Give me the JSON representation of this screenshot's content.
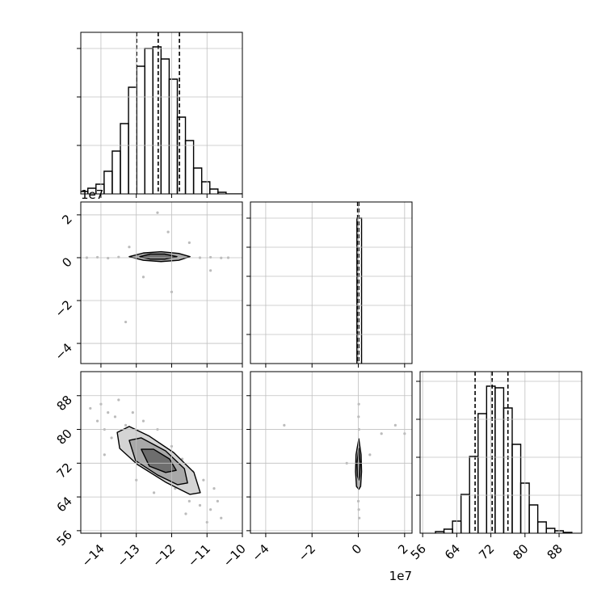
{
  "chart_data": {
    "type": "corner",
    "grid": true,
    "contour_fills": [
      "#d4d4d4",
      "#a8a8a8",
      "#6e6e6e"
    ],
    "parameters": [
      {
        "xlim": [
          -14.57,
          -10
        ],
        "ticks": [
          {
            "value": -14,
            "label": "−14"
          },
          {
            "value": -13,
            "label": "−13"
          },
          {
            "value": -12,
            "label": "−12"
          },
          {
            "value": -11,
            "label": "−11"
          },
          {
            "value": -10,
            "label": "−10"
          }
        ],
        "quantiles": [
          -12.99,
          -12.38,
          -11.78
        ],
        "hist": {
          "bins": [
            -14.6,
            -14.37,
            -14.14,
            -13.91,
            -13.68,
            -13.45,
            -13.22,
            -12.99,
            -12.76,
            -12.53,
            -12.3,
            -12.07,
            -11.84,
            -11.61,
            -11.38,
            -11.15,
            -10.92,
            -10.69,
            -10.46,
            -10.23,
            -10.0
          ],
          "counts": [
            3,
            7,
            12,
            28,
            53,
            87,
            132,
            158,
            180,
            182,
            167,
            142,
            95,
            66,
            32,
            15,
            6,
            2,
            0,
            0
          ],
          "ylim": [
            0,
            200
          ],
          "yticks": [
            60,
            120,
            180
          ]
        }
      },
      {
        "xlim": [
          -4.66,
          2.32
        ],
        "ylim": [
          -4.94,
          2.6
        ],
        "offset_label": "1e7",
        "ticks": [
          {
            "value": -4,
            "label": "−4"
          },
          {
            "value": -2,
            "label": "−2"
          },
          0,
          2
        ],
        "quantiles": [
          -0.03,
          0.0,
          0.02
        ],
        "hist": {
          "bins": [
            -0.06,
            0.14
          ],
          "counts": [
            180
          ],
          "ylim": [
            0,
            200
          ],
          "yticks": [
            36,
            72,
            108,
            144,
            180
          ]
        }
      },
      {
        "xlim": [
          55.4,
          93.3
        ],
        "ylim": [
          55.4,
          93.7
        ],
        "ticks": [
          56,
          64,
          72,
          80,
          88
        ],
        "quantiles": [
          68.3,
          72.3,
          76.0
        ],
        "hist": {
          "bins": [
            59,
            61,
            63,
            65,
            67,
            69,
            71,
            73,
            75,
            77,
            79,
            81,
            83,
            85,
            87,
            89,
            91
          ],
          "counts": [
            2,
            5,
            15,
            48,
            95,
            148,
            182,
            180,
            155,
            110,
            62,
            35,
            14,
            6,
            3,
            1
          ],
          "ylim": [
            0,
            200
          ],
          "yticks": [
            47,
            94,
            141,
            188
          ]
        }
      }
    ],
    "pairs": [
      {
        "x_param": 0,
        "y_param": 1,
        "points": {
          "x": [
            -14.4,
            -14.1,
            -13.8,
            -13.5,
            -11.2,
            -10.9,
            -10.6,
            -10.4,
            -13.2,
            -12.1,
            -12.8,
            -11.5,
            -13.3,
            -12.4,
            -10.9,
            -12.0
          ],
          "y": [
            0,
            0.02,
            -0.02,
            0.03,
            0,
            0.02,
            -0.01,
            0,
            0.5,
            1.2,
            -0.9,
            0.7,
            -3,
            2.1,
            -0.6,
            -1.6
          ]
        },
        "contours": [
          {
            "x": [
              -13.2,
              -12.8,
              -12.3,
              -11.8,
              -11.48,
              -11.8,
              -12.3,
              -12.8
            ],
            "y": [
              0.05,
              0.22,
              0.28,
              0.2,
              0.05,
              -0.12,
              -0.18,
              -0.12
            ]
          },
          {
            "x": [
              -12.9,
              -12.6,
              -12.2,
              -11.85,
              -12.2,
              -12.6
            ],
            "y": [
              0.05,
              0.17,
              0.17,
              0.05,
              -0.07,
              -0.07
            ]
          }
        ]
      },
      {
        "x_param": 0,
        "y_param": 2,
        "points": {
          "x": [
            -14.3,
            -14.1,
            -14.0,
            -13.9,
            -13.8,
            -13.7,
            -13.6,
            -13.5,
            -13.4,
            -13.3,
            -13.1,
            -12.9,
            -12.8,
            -12.6,
            -12.4,
            -12.2,
            -12.0,
            -11.9,
            -11.7,
            -11.5,
            -11.4,
            -11.2,
            -11.1,
            -10.9,
            -10.8,
            -10.7,
            -10.6,
            -13.0,
            -12.5,
            -11.6,
            -13.9,
            -11.0
          ],
          "y": [
            85,
            82,
            86,
            80,
            84,
            78,
            83,
            87,
            76,
            81,
            84,
            79,
            82,
            77,
            80,
            71,
            76,
            66,
            73,
            63,
            70,
            62,
            68,
            61,
            66,
            63,
            59,
            68,
            65,
            60,
            74,
            58
          ]
        },
        "contours": [
          {
            "x": [
              -13.54,
              -13.2,
              -12.63,
              -11.94,
              -11.37,
              -11.19,
              -11.48,
              -12.17,
              -12.97,
              -13.47
            ],
            "y": [
              79.3,
              80.7,
              78.4,
              74.5,
              69.8,
              65.0,
              64.6,
              67.5,
              71.7,
              75.5
            ]
          },
          {
            "x": [
              -13.2,
              -12.86,
              -12.17,
              -11.64,
              -11.55,
              -11.83,
              -12.4,
              -13.02
            ],
            "y": [
              77.4,
              78.0,
              74.9,
              70.7,
              67.3,
              66.9,
              69.2,
              72.6
            ]
          },
          {
            "x": [
              -12.86,
              -12.51,
              -12.06,
              -11.87,
              -12.17,
              -12.63
            ],
            "y": [
              75.3,
              75.3,
              73.0,
              70.3,
              69.8,
              71.3
            ]
          }
        ]
      },
      {
        "x_param": 1,
        "y_param": 2,
        "points": {
          "x": [
            0.02,
            0.01,
            0.03,
            0.0,
            0.02,
            0.04,
            -3.2,
            1.6,
            0.5,
            -0.5,
            1.0,
            2.0
          ],
          "y": [
            86,
            83,
            80,
            63,
            61,
            59,
            81,
            81,
            74,
            72,
            79,
            79
          ]
        },
        "contours": [
          {
            "x": [
              0.02,
              0.12,
              0.14,
              0.1,
              0.02,
              -0.08,
              -0.12,
              -0.1
            ],
            "y": [
              77.8,
              74,
              70,
              66.5,
              65.8,
              66.5,
              70,
              74
            ]
          },
          {
            "x": [
              0.02,
              0.08,
              0.06,
              0.02,
              -0.04,
              -0.06
            ],
            "y": [
              75.5,
              72,
              69,
              68,
              69,
              72
            ]
          }
        ]
      }
    ]
  }
}
